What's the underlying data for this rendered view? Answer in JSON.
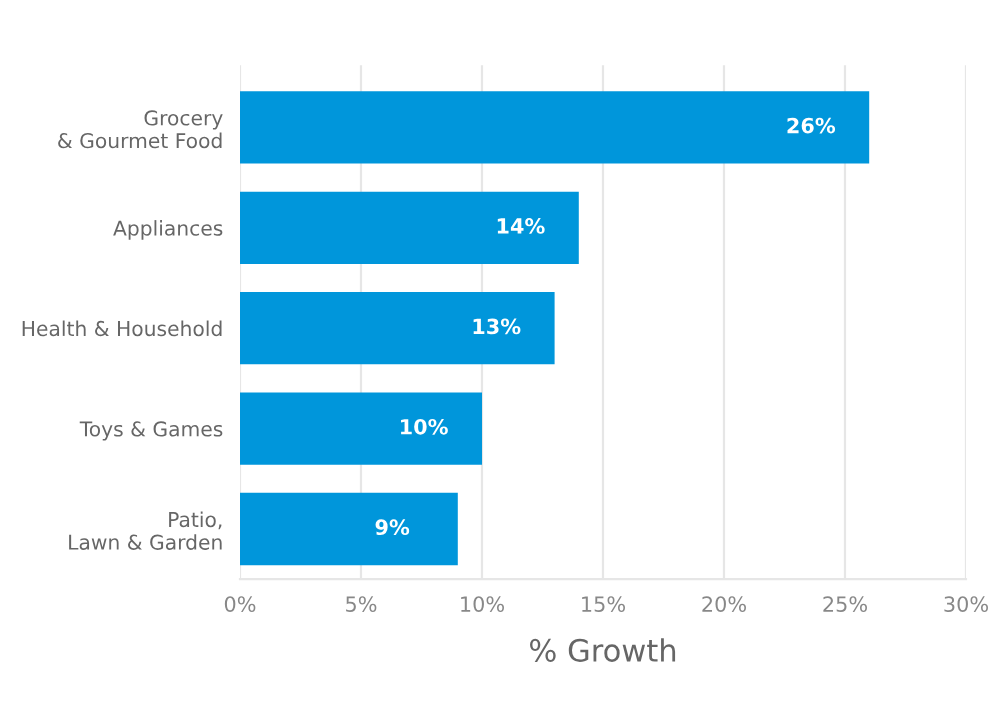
{
  "chart_data": {
    "type": "bar",
    "orientation": "horizontal",
    "xlabel": "% Growth",
    "categories": [
      "Grocery\n& Gourmet Food",
      "Appliances",
      "Health & Household",
      "Toys & Games",
      "Patio,\nLawn & Garden"
    ],
    "values": [
      26,
      14,
      13,
      10,
      9
    ],
    "color": "#0096db",
    "value_labels": [
      "26%",
      "14%",
      "13%",
      "10%",
      "9%"
    ],
    "xlim": [
      0,
      30
    ],
    "xticks": [
      {
        "value": 0,
        "label": "0%"
      },
      {
        "value": 5,
        "label": "5%"
      },
      {
        "value": 10,
        "label": "10%"
      },
      {
        "value": 15,
        "label": "15%"
      },
      {
        "value": 20,
        "label": "20%"
      },
      {
        "value": 25,
        "label": "25%"
      },
      {
        "value": 30,
        "label": "30%"
      }
    ],
    "grid": "x",
    "legend": false
  }
}
